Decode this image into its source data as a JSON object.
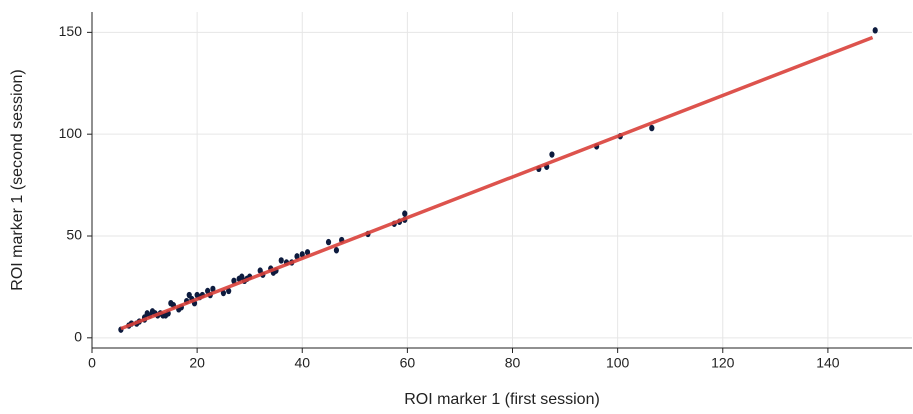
{
  "chart_data": {
    "type": "scatter",
    "x_label": "ROI marker 1 (first session)",
    "y_label": "ROI marker 1 (second session)",
    "xlim": [
      0,
      156
    ],
    "ylim": [
      -5,
      160
    ],
    "xticks": [
      0,
      20,
      40,
      60,
      80,
      100,
      120,
      140
    ],
    "yticks": [
      0,
      50,
      100,
      150
    ],
    "grid": true,
    "color": "#0d1b3e",
    "x": [
      5.5,
      7,
      7.5,
      8.5,
      9,
      10,
      10.5,
      10,
      11,
      11.5,
      12,
      12.5,
      13,
      13.5,
      14,
      14.5,
      15,
      15.5,
      16.5,
      17,
      18,
      18.5,
      19,
      19.5,
      20,
      20.5,
      21,
      22,
      22.5,
      23,
      25,
      26,
      27,
      28,
      28.5,
      29,
      29.5,
      30,
      32,
      32.5,
      34,
      34.5,
      35,
      36,
      37,
      38,
      39,
      40,
      41,
      45,
      46.5,
      47.5,
      52.5,
      57.5,
      58.5,
      59.5,
      59.5,
      85,
      86.5,
      87.5,
      96,
      100.5,
      106.5,
      149
    ],
    "values": [
      4,
      6,
      7,
      7,
      8,
      9,
      12,
      10,
      11,
      13,
      12,
      11,
      12,
      11,
      11,
      12,
      17,
      16,
      14,
      15,
      18,
      21,
      19,
      17,
      21,
      20,
      21,
      23,
      21,
      24,
      22,
      23,
      28,
      29,
      30,
      28,
      29,
      30,
      33,
      31,
      34,
      32,
      33,
      38,
      37,
      37,
      40,
      41,
      42,
      47,
      43,
      48,
      51,
      56,
      57,
      58,
      61,
      83,
      84,
      90,
      94,
      99,
      103,
      151
    ],
    "fit_line": {
      "color": "#d9403a",
      "x": [
        5.5,
        148.5
      ],
      "y": [
        4.5,
        147.5
      ]
    }
  }
}
